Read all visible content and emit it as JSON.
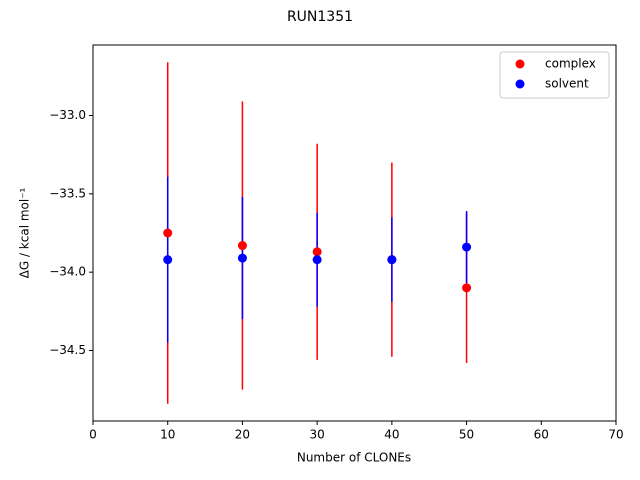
{
  "chart_data": {
    "type": "errorbar-scatter",
    "title": "RUN1351",
    "xlabel": "Number of CLONEs",
    "ylabel": "ΔG / kcal mol⁻¹",
    "x": [
      10,
      20,
      30,
      40,
      50
    ],
    "series": [
      {
        "name": "complex",
        "color": "#ff0000",
        "values": [
          -33.75,
          -33.83,
          -33.87,
          -33.92,
          -34.1
        ],
        "errors": [
          1.09,
          0.92,
          0.69,
          0.62,
          0.48
        ]
      },
      {
        "name": "solvent",
        "color": "#0000ff",
        "values": [
          -33.92,
          -33.91,
          -33.92,
          -33.92,
          -33.84
        ],
        "errors": [
          0.53,
          0.39,
          0.3,
          0.27,
          0.23
        ]
      }
    ],
    "xlim": [
      0,
      70
    ],
    "xticks": [
      0,
      10,
      20,
      30,
      40,
      50,
      60,
      70
    ],
    "ylim": [
      -34.95,
      -32.55
    ],
    "yticks": [
      {
        "value": -33.0,
        "label": "−33.0"
      },
      {
        "value": -33.5,
        "label": "−33.5"
      },
      {
        "value": -34.0,
        "label": "−34.0"
      },
      {
        "value": -34.5,
        "label": "−34.5"
      }
    ],
    "legend": "upper-right"
  }
}
